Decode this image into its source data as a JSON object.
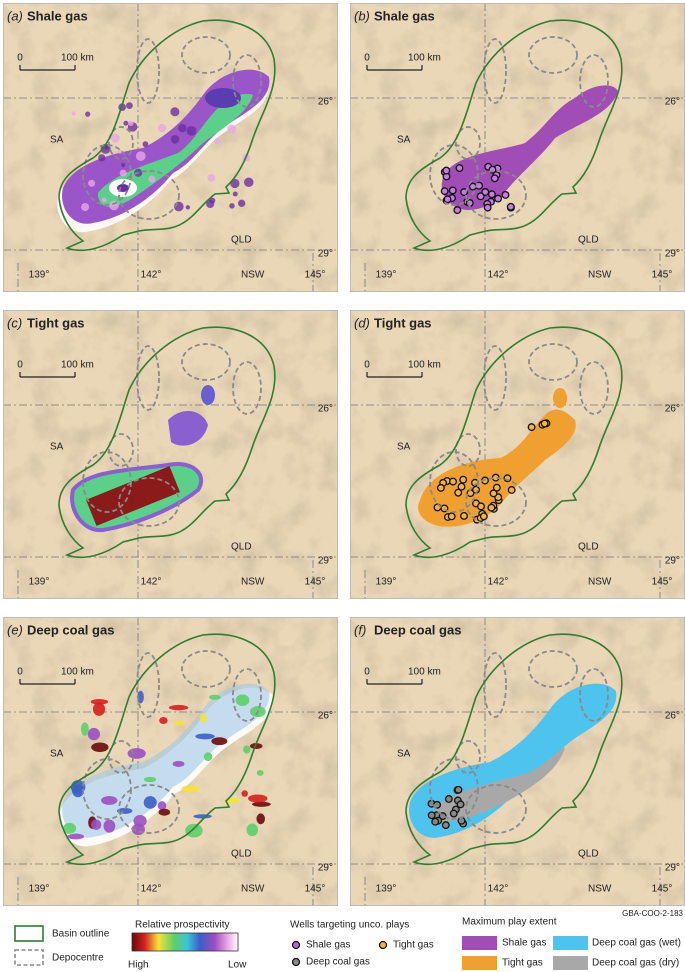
{
  "panels": [
    {
      "letter": "(a)",
      "title": "Shale gas",
      "scale_start": "0",
      "scale_end": "100 km",
      "lat_labels": [
        "26°",
        "29°"
      ],
      "states": [
        "SA",
        "QLD",
        "NSW"
      ],
      "lon_labels": [
        "139°",
        "142°",
        "145°"
      ]
    },
    {
      "letter": "(b)",
      "title": "Shale gas",
      "scale_start": "0",
      "scale_end": "100 km",
      "lat_labels": [
        "26°",
        "29°"
      ],
      "states": [
        "SA",
        "QLD",
        "NSW"
      ],
      "lon_labels": [
        "139°",
        "142°",
        "145°"
      ]
    },
    {
      "letter": "(c)",
      "title": "Tight gas",
      "scale_start": "0",
      "scale_end": "100 km",
      "lat_labels": [
        "26°",
        "29°"
      ],
      "states": [
        "SA",
        "QLD",
        "NSW"
      ],
      "lon_labels": [
        "139°",
        "142°",
        "145°"
      ]
    },
    {
      "letter": "(d)",
      "title": "Tight gas",
      "scale_start": "0",
      "scale_end": "100 km",
      "lat_labels": [
        "26°",
        "29°"
      ],
      "states": [
        "SA",
        "QLD",
        "NSW"
      ],
      "lon_labels": [
        "139°",
        "142°",
        "145°"
      ]
    },
    {
      "letter": "(e)",
      "title": "Deep coal gas",
      "scale_start": "0",
      "scale_end": "100 km",
      "lat_labels": [
        "26°",
        "29°"
      ],
      "states": [
        "SA",
        "QLD",
        "NSW"
      ],
      "lon_labels": [
        "139°",
        "142°",
        "145°"
      ]
    },
    {
      "letter": "(f)",
      "title": "Deep coal gas",
      "scale_start": "0",
      "scale_end": "100 km",
      "lat_labels": [
        "26°",
        "29°"
      ],
      "states": [
        "SA",
        "QLD",
        "NSW"
      ],
      "lon_labels": [
        "139°",
        "142°",
        "145°"
      ]
    }
  ],
  "legend": {
    "basin_outline": "Basin outline",
    "depocentre": "Depocentre",
    "prospectivity": {
      "title": "Relative prospectivity",
      "high": "High",
      "low": "Low"
    },
    "wells": {
      "title": "Wells targeting unco. plays",
      "items": [
        "Shale gas",
        "Tight gas",
        "Deep coal gas"
      ]
    },
    "extent": {
      "title": "Maximum play extent",
      "items": [
        "Shale gas",
        "Deep coal gas (wet)",
        "Tight gas",
        "Deep coal gas (dry)"
      ]
    }
  },
  "figure_id": "GBA-COO-2-183"
}
